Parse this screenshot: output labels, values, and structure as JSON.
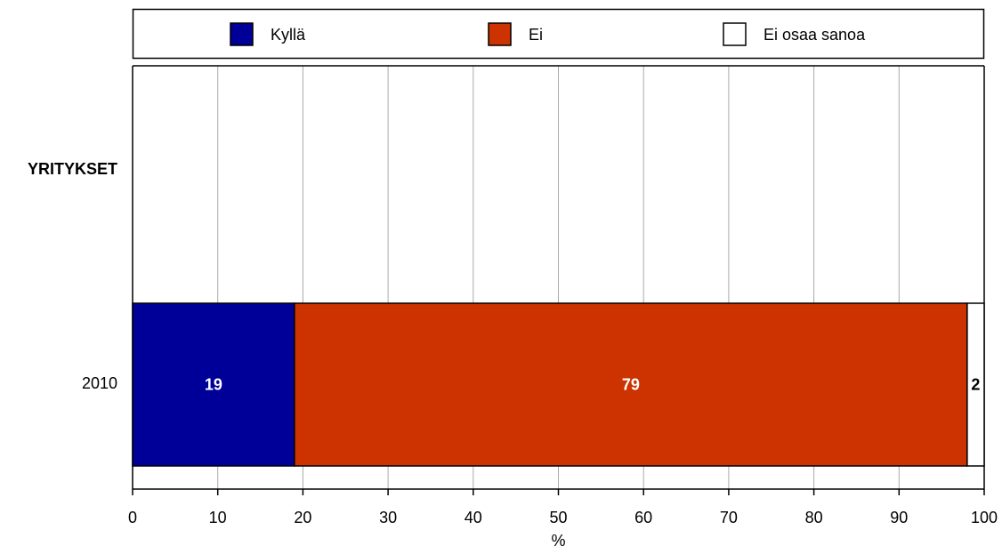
{
  "chart_data": {
    "type": "bar",
    "orientation": "horizontal",
    "stacked": true,
    "groups": [
      {
        "label": "YRITYKSET",
        "is_heading": true,
        "values": null
      },
      {
        "label": "2010",
        "is_heading": false,
        "values": [
          19,
          79,
          2
        ]
      }
    ],
    "series": [
      {
        "name": "Kyllä",
        "color": "#000099"
      },
      {
        "name": "Ei",
        "color": "#CC3300"
      },
      {
        "name": "Ei osaa sanoa",
        "color": "#FFFFFF"
      }
    ],
    "xlabel": "%",
    "xlim": [
      0,
      100
    ],
    "xticks": [
      0,
      10,
      20,
      30,
      40,
      50,
      60,
      70,
      80,
      90,
      100
    ],
    "grid": true,
    "legend_position": "top"
  }
}
